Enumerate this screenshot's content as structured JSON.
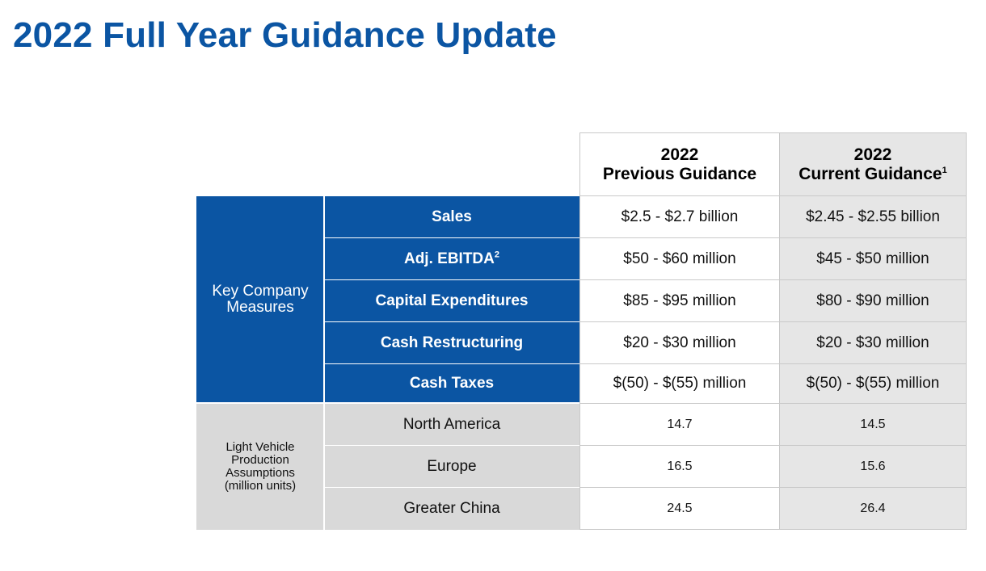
{
  "title": "2022 Full Year Guidance Update",
  "columns": {
    "previous": {
      "year": "2022",
      "label": "Previous Guidance",
      "footnote": ""
    },
    "current": {
      "year": "2022",
      "label": "Current Guidance",
      "footnote": "1"
    }
  },
  "key_measures": {
    "group_label": "Key Company Measures",
    "rows": [
      {
        "label": "Sales",
        "footnote": "",
        "previous": "$2.5 - $2.7 billion",
        "current": "$2.45 - $2.55 billion"
      },
      {
        "label": "Adj. EBITDA",
        "footnote": "2",
        "previous": "$50 - $60 million",
        "current": "$45 - $50 million"
      },
      {
        "label": "Capital Expenditures",
        "footnote": "",
        "previous": "$85 - $95 million",
        "current": "$80 - $90 million"
      },
      {
        "label": "Cash Restructuring",
        "footnote": "",
        "previous": "$20 - $30 million",
        "current": "$20 - $30 million"
      },
      {
        "label": "Cash Taxes",
        "footnote": "",
        "previous": "$(50) - $(55) million",
        "current": "$(50) - $(55) million"
      }
    ]
  },
  "production": {
    "group_label": "Light Vehicle Production Assumptions (million units)",
    "rows": [
      {
        "label": "North America",
        "previous": "14.7",
        "current": "14.5"
      },
      {
        "label": "Europe",
        "previous": "16.5",
        "current": "15.6"
      },
      {
        "label": "Greater China",
        "previous": "24.5",
        "current": "26.4"
      }
    ]
  }
}
